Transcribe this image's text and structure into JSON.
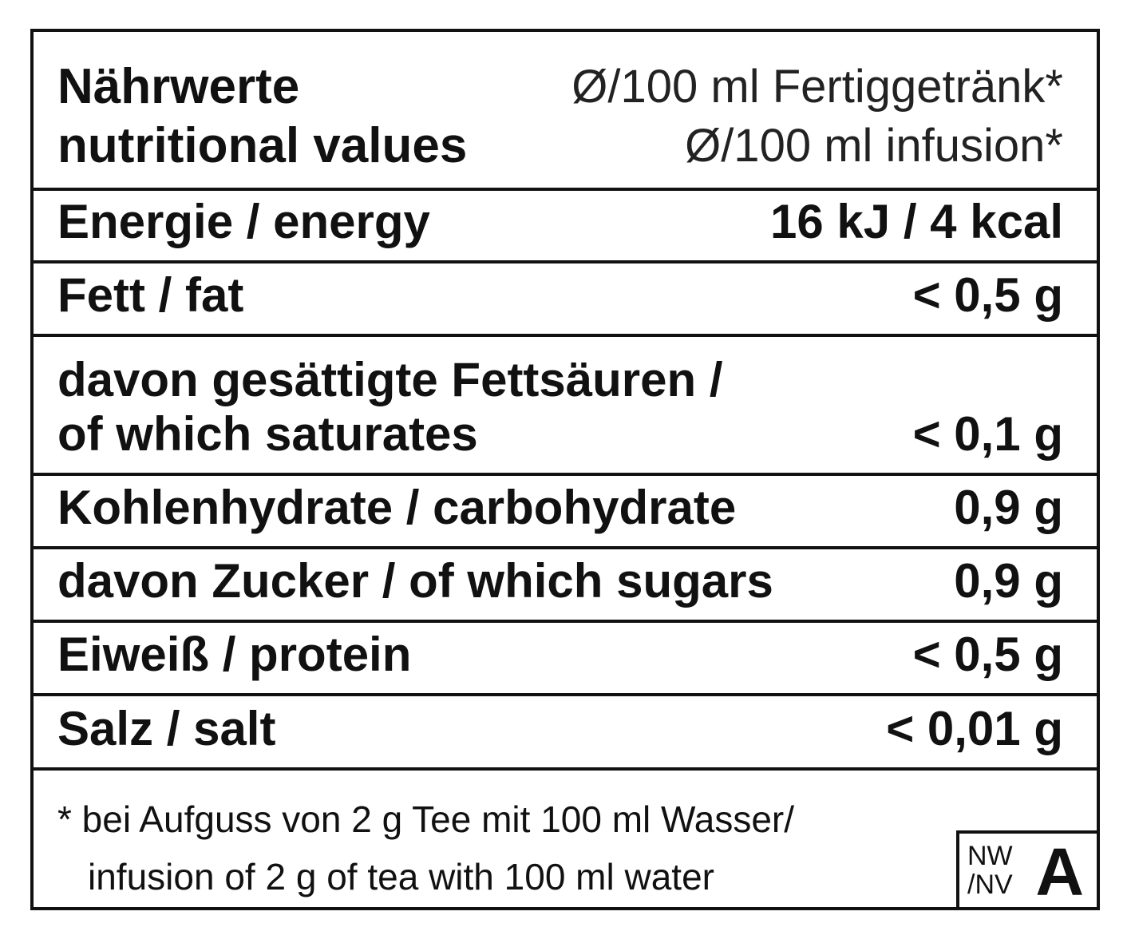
{
  "header": {
    "title_de": "Nährwerte",
    "title_en": "nutritional values",
    "basis_de": "Ø/100 ml Fertiggetränk*",
    "basis_en": "Ø/100 ml infusion*"
  },
  "rows": [
    {
      "label": "Energie / energy",
      "value": "16 kJ / 4 kcal"
    },
    {
      "label": "Fett / fat",
      "value": "< 0,5 g"
    },
    {
      "label": "davon gesättigte Fettsäuren /",
      "label2": "of which saturates",
      "value": "< 0,1 g"
    },
    {
      "label": "Kohlenhydrate / carbohydrate",
      "value": "0,9 g"
    },
    {
      "label": "davon Zucker / of which sugars",
      "value": "0,9 g"
    },
    {
      "label": "Eiweiß / protein",
      "value": "< 0,5 g"
    },
    {
      "label": "Salz / salt",
      "value": "< 0,01 g"
    }
  ],
  "footnote": {
    "line1": "* bei Aufguss von 2 g Tee mit 100 ml Wasser/",
    "line2": "infusion of 2 g of tea with 100 ml water"
  },
  "badge": {
    "prefix1": "NW",
    "prefix2": "/NV",
    "letter": "A"
  }
}
